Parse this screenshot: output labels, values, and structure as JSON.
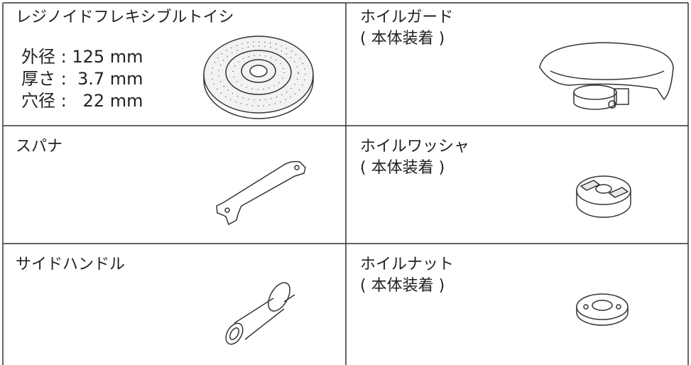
{
  "cells": [
    {
      "title": "レジノイドフレキシブルトイシ",
      "specs": [
        "外径 : 125 mm",
        "厚さ :  3.7 mm",
        "穴径 :   22 mm"
      ]
    },
    {
      "title": "ホイルガード",
      "note": "( 本体装着 )"
    },
    {
      "title": "スパナ"
    },
    {
      "title": "ホイルワッシャ",
      "note": "( 本体装着 )"
    },
    {
      "title": "サイドハンドル"
    },
    {
      "title": "ホイルナット",
      "note": "( 本体装着 )"
    }
  ]
}
